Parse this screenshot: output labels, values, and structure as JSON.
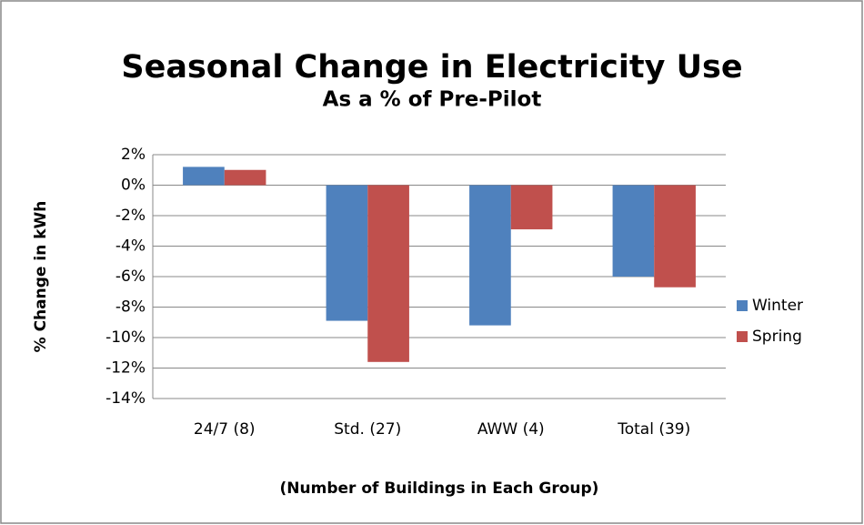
{
  "chart_data": {
    "type": "bar",
    "title": "Seasonal Change in Electricity Use",
    "subtitle": "As a % of Pre-Pilot",
    "y_label": "% Change in kWh",
    "x_label": "(Number of Buildings in Each Group)",
    "categories": [
      "24/7 (8)",
      "Std. (27)",
      "AWW (4)",
      "Total (39)"
    ],
    "series": [
      {
        "name": "Winter",
        "color": "#4f81bd",
        "values": [
          1.2,
          -8.9,
          -9.2,
          -6.0
        ]
      },
      {
        "name": "Spring",
        "color": "#c0504d",
        "values": [
          1.0,
          -11.6,
          -2.9,
          -6.7
        ]
      }
    ],
    "ylim": [
      -14,
      2
    ],
    "yticks": [
      {
        "value": 2,
        "label": "2%"
      },
      {
        "value": 0,
        "label": "0%"
      },
      {
        "value": -2,
        "label": "-2%"
      },
      {
        "value": -4,
        "label": "-4%"
      },
      {
        "value": -6,
        "label": "-6%"
      },
      {
        "value": -8,
        "label": "-8%"
      },
      {
        "value": -10,
        "label": "-10%"
      },
      {
        "value": -12,
        "label": "-12%"
      },
      {
        "value": -14,
        "label": "-14%"
      }
    ],
    "grid": true,
    "legend": "right"
  }
}
